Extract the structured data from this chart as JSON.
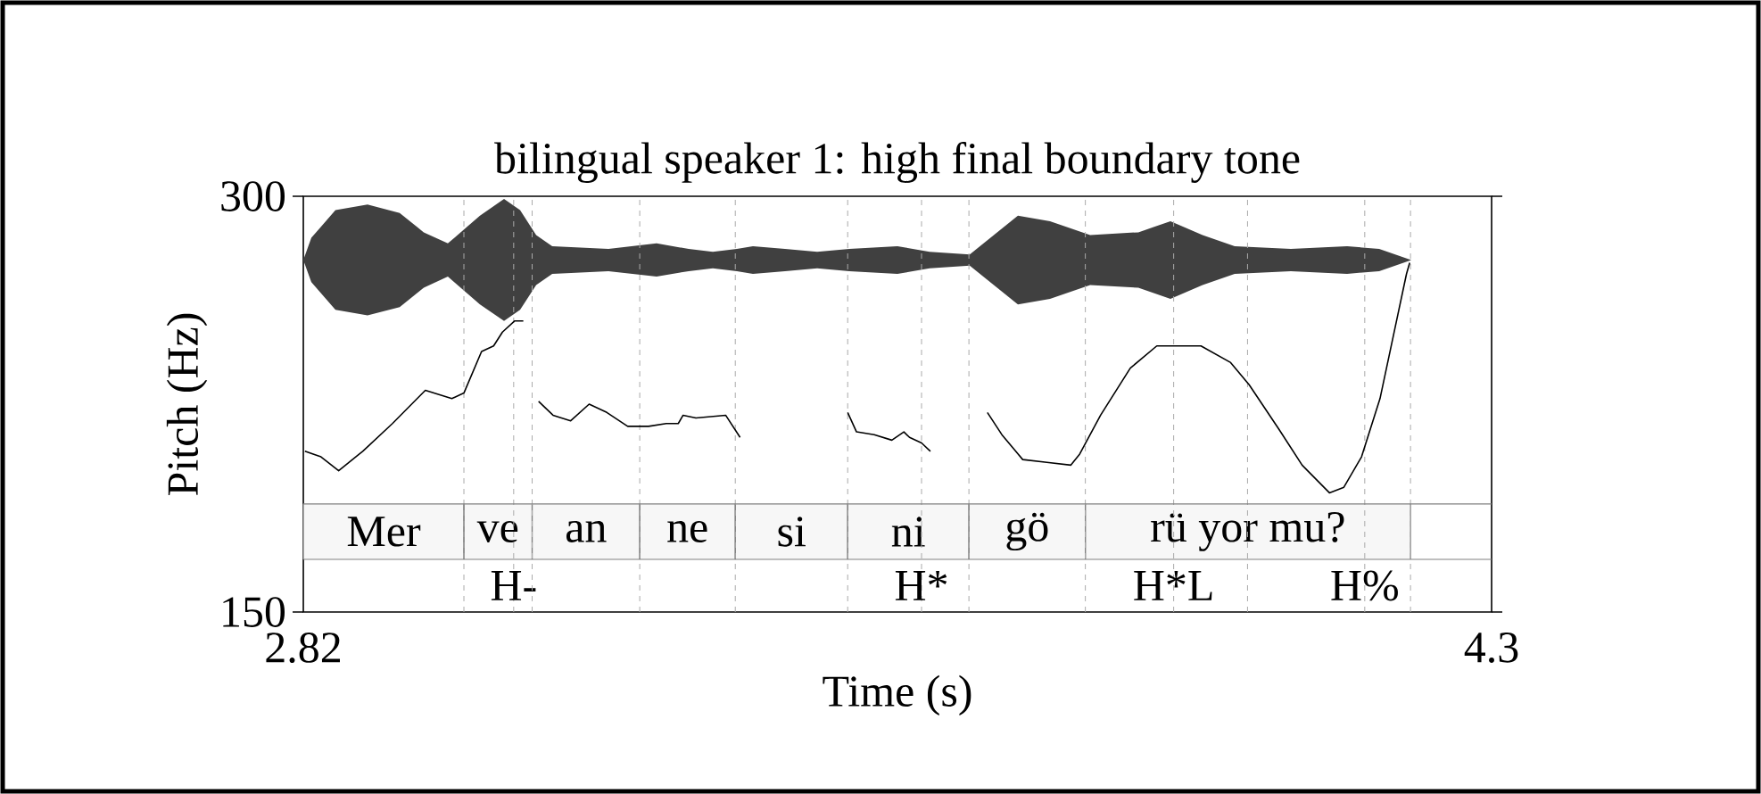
{
  "chart_data": {
    "type": "line",
    "title": "bilingual speaker 1: high final boundary tone",
    "xlabel": "Time (s)",
    "ylabel": "Pitch (Hz)",
    "x": [
      2.822,
      2.842,
      2.864,
      2.894,
      2.931,
      2.972,
      3.005,
      3.02,
      3.042,
      3.057,
      3.068,
      3.083,
      3.094,
      3.1,
      3.113,
      3.131,
      3.153,
      3.176,
      3.198,
      3.224,
      3.25,
      3.272,
      3.287,
      3.293,
      3.309,
      3.346,
      3.364,
      3.43,
      3.498,
      3.509,
      3.531,
      3.553,
      3.568,
      3.575,
      3.59,
      3.601,
      3.63,
      3.672,
      3.69,
      3.716,
      3.746,
      3.776,
      3.787,
      3.813,
      3.85,
      3.883,
      3.909,
      3.938,
      3.975,
      3.998,
      4.035,
      4.064,
      4.098,
      4.116,
      4.138,
      4.161,
      4.183,
      4.194,
      4.198
    ],
    "series": [
      {
        "color": "#000000",
        "values": [
          208,
          206,
          201,
          208,
          218,
          230,
          227,
          229,
          244,
          246,
          251,
          255,
          255,
          null,
          226,
          221,
          219,
          225,
          222,
          217,
          217,
          218,
          218,
          221,
          220,
          221,
          213,
          null,
          222,
          215,
          214,
          212,
          215,
          213,
          211,
          208,
          null,
          222,
          214,
          205,
          204,
          203,
          207,
          221,
          238,
          246,
          246,
          246,
          240,
          232,
          216,
          203,
          193,
          195,
          206,
          227,
          257,
          272,
          276
        ]
      }
    ],
    "xlim": [
      2.82,
      4.3
    ],
    "ylim": [
      150,
      300
    ],
    "xticks": [
      2.82,
      4.3
    ],
    "yticks": [
      150,
      300
    ],
    "marker": "none",
    "line_style": "solid",
    "ref_lines": [
      {
        "axis": "x",
        "value": 3.02,
        "color": "#aaaaaa",
        "line_style": "dashed"
      },
      {
        "axis": "x",
        "value": 3.082,
        "color": "#aaaaaa",
        "line_style": "dashed",
        "label": "H-"
      },
      {
        "axis": "x",
        "value": 3.105,
        "color": "#aaaaaa",
        "line_style": "dashed"
      },
      {
        "axis": "x",
        "value": 3.239,
        "color": "#aaaaaa",
        "line_style": "dashed"
      },
      {
        "axis": "x",
        "value": 3.358,
        "color": "#aaaaaa",
        "line_style": "dashed"
      },
      {
        "axis": "x",
        "value": 3.498,
        "color": "#aaaaaa",
        "line_style": "dashed"
      },
      {
        "axis": "x",
        "value": 3.59,
        "color": "#aaaaaa",
        "line_style": "dashed",
        "label": "H*"
      },
      {
        "axis": "x",
        "value": 3.649,
        "color": "#aaaaaa",
        "line_style": "dashed"
      },
      {
        "axis": "x",
        "value": 3.794,
        "color": "#aaaaaa",
        "line_style": "dashed"
      },
      {
        "axis": "x",
        "value": 3.904,
        "color": "#aaaaaa",
        "line_style": "dashed",
        "label": "H*L"
      },
      {
        "axis": "x",
        "value": 3.996,
        "color": "#aaaaaa",
        "line_style": "dashed"
      },
      {
        "axis": "x",
        "value": 4.142,
        "color": "#aaaaaa",
        "line_style": "dashed",
        "label": "H%"
      },
      {
        "axis": "x",
        "value": 4.199,
        "color": "#aaaaaa",
        "line_style": "dashed"
      },
      {
        "axis": "y",
        "value": 189,
        "color": "#808080",
        "line_style": "solid"
      },
      {
        "axis": "y",
        "value": 169,
        "color": "#808080",
        "line_style": "solid"
      }
    ],
    "bands": [
      {
        "axis": "x",
        "from": 2.82,
        "to": 3.02,
        "label": "Mer",
        "color": "#f7f7f7"
      },
      {
        "axis": "x",
        "from": 3.02,
        "to": 3.105,
        "label": "ve",
        "color": "#f7f7f7"
      },
      {
        "axis": "x",
        "from": 3.105,
        "to": 3.239,
        "label": "an",
        "color": "#f7f7f7"
      },
      {
        "axis": "x",
        "from": 3.239,
        "to": 3.358,
        "label": "ne",
        "color": "#f7f7f7"
      },
      {
        "axis": "x",
        "from": 3.358,
        "to": 3.498,
        "label": "si",
        "color": "#f7f7f7"
      },
      {
        "axis": "x",
        "from": 3.498,
        "to": 3.649,
        "label": "ni",
        "color": "#f7f7f7"
      },
      {
        "axis": "x",
        "from": 3.649,
        "to": 3.794,
        "label": "gö",
        "color": "#f7f7f7"
      },
      {
        "axis": "x",
        "from": 3.794,
        "to": 4.199,
        "label": "rü yor mu?",
        "color": "#f7f7f7"
      }
    ]
  }
}
